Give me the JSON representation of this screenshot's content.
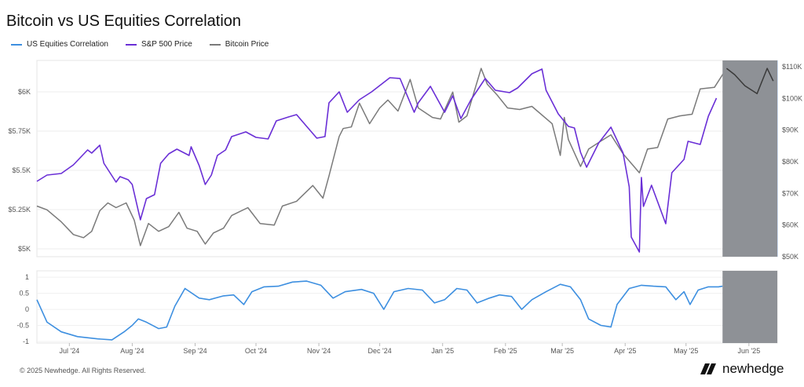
{
  "title": "Bitcoin vs US Equities Correlation",
  "footer": "© 2025 Newhedge. All Rights Reserved.",
  "brand": {
    "name": "newhedge",
    "logo_icon": "newhedge-logo-icon"
  },
  "colors": {
    "correlation": "#3d8fe0",
    "sp500": "#6a2fd6",
    "bitcoin": "#7a7a7a",
    "forecast_band": "#8e9196"
  },
  "chart_data": [
    {
      "type": "line",
      "title": "Bitcoin vs US Equities Correlation",
      "legend": "top-left",
      "x_ticks": [
        "Jul '24",
        "Aug '24",
        "Sep '24",
        "Oct '24",
        "Nov '24",
        "Dec '24",
        "Jan '25",
        "Feb '25",
        "Mar '25",
        "Apr '25",
        "May '25",
        "Jun '25"
      ],
      "y_left": {
        "ticks": [
          "$5K",
          "$5.25K",
          "$5.5K",
          "$5.75K",
          "$6K"
        ],
        "range": [
          4950,
          6200
        ]
      },
      "y_right": {
        "ticks": [
          "$50K",
          "$60K",
          "$70K",
          "$80K",
          "$90K",
          "$100K",
          "$110K"
        ],
        "range": [
          50000,
          112000
        ]
      },
      "shaded_region": [
        "2025-05-19",
        "2025-06-15"
      ],
      "series": [
        {
          "name": "S&P 500 Price",
          "axis": "left",
          "points": [
            [
              "2024-06-15",
              5430
            ],
            [
              "2024-06-20",
              5470
            ],
            [
              "2024-06-27",
              5480
            ],
            [
              "2024-07-03",
              5535
            ],
            [
              "2024-07-10",
              5630
            ],
            [
              "2024-07-12",
              5610
            ],
            [
              "2024-07-16",
              5660
            ],
            [
              "2024-07-18",
              5545
            ],
            [
              "2024-07-24",
              5425
            ],
            [
              "2024-07-26",
              5460
            ],
            [
              "2024-07-30",
              5440
            ],
            [
              "2024-08-01",
              5410
            ],
            [
              "2024-08-05",
              5185
            ],
            [
              "2024-08-08",
              5320
            ],
            [
              "2024-08-12",
              5345
            ],
            [
              "2024-08-15",
              5545
            ],
            [
              "2024-08-19",
              5605
            ],
            [
              "2024-08-23",
              5635
            ],
            [
              "2024-08-29",
              5595
            ],
            [
              "2024-08-30",
              5650
            ],
            [
              "2024-09-03",
              5530
            ],
            [
              "2024-09-06",
              5410
            ],
            [
              "2024-09-09",
              5470
            ],
            [
              "2024-09-12",
              5595
            ],
            [
              "2024-09-16",
              5630
            ],
            [
              "2024-09-19",
              5715
            ],
            [
              "2024-09-26",
              5745
            ],
            [
              "2024-10-01",
              5710
            ],
            [
              "2024-10-07",
              5700
            ],
            [
              "2024-10-11",
              5815
            ],
            [
              "2024-10-17",
              5840
            ],
            [
              "2024-10-21",
              5855
            ],
            [
              "2024-10-24",
              5810
            ],
            [
              "2024-10-31",
              5705
            ],
            [
              "2024-11-04",
              5715
            ],
            [
              "2024-11-06",
              5930
            ],
            [
              "2024-11-11",
              6000
            ],
            [
              "2024-11-15",
              5870
            ],
            [
              "2024-11-21",
              5950
            ],
            [
              "2024-11-27",
              6000
            ],
            [
              "2024-12-06",
              6090
            ],
            [
              "2024-12-11",
              6085
            ],
            [
              "2024-12-18",
              5870
            ],
            [
              "2024-12-20",
              5930
            ],
            [
              "2024-12-26",
              6035
            ],
            [
              "2025-01-02",
              5870
            ],
            [
              "2025-01-06",
              5975
            ],
            [
              "2025-01-10",
              5830
            ],
            [
              "2025-01-15",
              5950
            ],
            [
              "2025-01-22",
              6085
            ],
            [
              "2025-01-27",
              6010
            ],
            [
              "2025-02-03",
              5995
            ],
            [
              "2025-02-07",
              6025
            ],
            [
              "2025-02-14",
              6115
            ],
            [
              "2025-02-19",
              6145
            ],
            [
              "2025-02-21",
              6010
            ],
            [
              "2025-02-27",
              5860
            ],
            [
              "2025-03-04",
              5780
            ],
            [
              "2025-03-07",
              5770
            ],
            [
              "2025-03-10",
              5615
            ],
            [
              "2025-03-13",
              5520
            ],
            [
              "2025-03-19",
              5675
            ],
            [
              "2025-03-25",
              5775
            ],
            [
              "2025-03-31",
              5610
            ],
            [
              "2025-04-03",
              5395
            ],
            [
              "2025-04-04",
              5075
            ],
            [
              "2025-04-08",
              4980
            ],
            [
              "2025-04-09",
              5455
            ],
            [
              "2025-04-10",
              5270
            ],
            [
              "2025-04-14",
              5405
            ],
            [
              "2025-04-21",
              5160
            ],
            [
              "2025-04-24",
              5485
            ],
            [
              "2025-04-30",
              5570
            ],
            [
              "2025-05-02",
              5685
            ],
            [
              "2025-05-08",
              5665
            ],
            [
              "2025-05-12",
              5845
            ],
            [
              "2025-05-16",
              5960
            ]
          ]
        },
        {
          "name": "Bitcoin Price",
          "axis": "right",
          "points": [
            [
              "2024-06-15",
              66000
            ],
            [
              "2024-06-20",
              64800
            ],
            [
              "2024-06-27",
              61000
            ],
            [
              "2024-07-03",
              57000
            ],
            [
              "2024-07-08",
              56000
            ],
            [
              "2024-07-12",
              58000
            ],
            [
              "2024-07-16",
              64500
            ],
            [
              "2024-07-20",
              67000
            ],
            [
              "2024-07-24",
              65500
            ],
            [
              "2024-07-29",
              67000
            ],
            [
              "2024-08-02",
              61500
            ],
            [
              "2024-08-05",
              53500
            ],
            [
              "2024-08-09",
              60500
            ],
            [
              "2024-08-14",
              58000
            ],
            [
              "2024-08-19",
              59500
            ],
            [
              "2024-08-24",
              64000
            ],
            [
              "2024-08-28",
              59000
            ],
            [
              "2024-09-02",
              58000
            ],
            [
              "2024-09-06",
              54000
            ],
            [
              "2024-09-10",
              57500
            ],
            [
              "2024-09-15",
              59000
            ],
            [
              "2024-09-19",
              63000
            ],
            [
              "2024-09-27",
              65500
            ],
            [
              "2024-10-03",
              60500
            ],
            [
              "2024-10-10",
              60000
            ],
            [
              "2024-10-14",
              66000
            ],
            [
              "2024-10-21",
              67500
            ],
            [
              "2024-10-29",
              72500
            ],
            [
              "2024-11-03",
              68500
            ],
            [
              "2024-11-06",
              75500
            ],
            [
              "2024-11-11",
              88000
            ],
            [
              "2024-11-13",
              90500
            ],
            [
              "2024-11-17",
              91000
            ],
            [
              "2024-11-21",
              98500
            ],
            [
              "2024-11-26",
              92000
            ],
            [
              "2024-12-01",
              97000
            ],
            [
              "2024-12-05",
              99500
            ],
            [
              "2024-12-10",
              96000
            ],
            [
              "2024-12-16",
              106000
            ],
            [
              "2024-12-20",
              97000
            ],
            [
              "2024-12-27",
              94000
            ],
            [
              "2024-12-31",
              93500
            ],
            [
              "2025-01-06",
              102000
            ],
            [
              "2025-01-09",
              92500
            ],
            [
              "2025-01-13",
              94500
            ],
            [
              "2025-01-20",
              109500
            ],
            [
              "2025-01-23",
              104500
            ],
            [
              "2025-01-28",
              101000
            ],
            [
              "2025-02-02",
              97000
            ],
            [
              "2025-02-08",
              96500
            ],
            [
              "2025-02-14",
              97500
            ],
            [
              "2025-02-24",
              92000
            ],
            [
              "2025-02-28",
              82000
            ],
            [
              "2025-03-02",
              94000
            ],
            [
              "2025-03-04",
              87000
            ],
            [
              "2025-03-10",
              78500
            ],
            [
              "2025-03-14",
              84000
            ],
            [
              "2025-03-20",
              86500
            ],
            [
              "2025-03-25",
              88500
            ],
            [
              "2025-03-31",
              82500
            ],
            [
              "2025-04-06",
              78000
            ],
            [
              "2025-04-08",
              76500
            ],
            [
              "2025-04-12",
              84000
            ],
            [
              "2025-04-17",
              84500
            ],
            [
              "2025-04-22",
              93500
            ],
            [
              "2025-04-28",
              94500
            ],
            [
              "2025-05-04",
              95000
            ],
            [
              "2025-05-08",
              103000
            ],
            [
              "2025-05-15",
              103500
            ],
            [
              "2025-05-21",
              109500
            ],
            [
              "2025-05-25",
              107500
            ],
            [
              "2025-05-30",
              104000
            ],
            [
              "2025-06-05",
              101500
            ],
            [
              "2025-06-10",
              109500
            ],
            [
              "2025-06-13",
              105500
            ]
          ]
        }
      ]
    },
    {
      "type": "line",
      "y_ticks": [
        "1",
        "0.5",
        "0",
        "-0.5",
        "-1"
      ],
      "ylim": [
        -1.05,
        1.2
      ],
      "shaded_region": [
        "2025-05-19",
        "2025-06-15"
      ],
      "series": [
        {
          "name": "US Equities Correlation",
          "points": [
            [
              "2024-06-15",
              0.3
            ],
            [
              "2024-06-20",
              -0.4
            ],
            [
              "2024-06-27",
              -0.7
            ],
            [
              "2024-07-05",
              -0.85
            ],
            [
              "2024-07-15",
              -0.92
            ],
            [
              "2024-07-22",
              -0.95
            ],
            [
              "2024-07-28",
              -0.7
            ],
            [
              "2024-08-01",
              -0.5
            ],
            [
              "2024-08-04",
              -0.3
            ],
            [
              "2024-08-08",
              -0.4
            ],
            [
              "2024-08-14",
              -0.6
            ],
            [
              "2024-08-18",
              -0.55
            ],
            [
              "2024-08-22",
              0.1
            ],
            [
              "2024-08-27",
              0.65
            ],
            [
              "2024-09-03",
              0.35
            ],
            [
              "2024-09-08",
              0.3
            ],
            [
              "2024-09-15",
              0.42
            ],
            [
              "2024-09-20",
              0.45
            ],
            [
              "2024-09-25",
              0.15
            ],
            [
              "2024-09-29",
              0.55
            ],
            [
              "2024-10-05",
              0.7
            ],
            [
              "2024-10-12",
              0.72
            ],
            [
              "2024-10-19",
              0.85
            ],
            [
              "2024-10-26",
              0.88
            ],
            [
              "2024-11-02",
              0.75
            ],
            [
              "2024-11-08",
              0.35
            ],
            [
              "2024-11-14",
              0.55
            ],
            [
              "2024-11-22",
              0.62
            ],
            [
              "2024-11-28",
              0.5
            ],
            [
              "2024-12-03",
              0.0
            ],
            [
              "2024-12-08",
              0.55
            ],
            [
              "2024-12-15",
              0.65
            ],
            [
              "2024-12-22",
              0.6
            ],
            [
              "2024-12-28",
              0.2
            ],
            [
              "2025-01-02",
              0.3
            ],
            [
              "2025-01-08",
              0.65
            ],
            [
              "2025-01-13",
              0.6
            ],
            [
              "2025-01-18",
              0.2
            ],
            [
              "2025-01-24",
              0.35
            ],
            [
              "2025-01-29",
              0.45
            ],
            [
              "2025-02-04",
              0.4
            ],
            [
              "2025-02-09",
              0.0
            ],
            [
              "2025-02-14",
              0.3
            ],
            [
              "2025-02-21",
              0.55
            ],
            [
              "2025-02-28",
              0.78
            ],
            [
              "2025-03-05",
              0.7
            ],
            [
              "2025-03-10",
              0.3
            ],
            [
              "2025-03-14",
              -0.3
            ],
            [
              "2025-03-20",
              -0.5
            ],
            [
              "2025-03-25",
              -0.55
            ],
            [
              "2025-03-28",
              0.15
            ],
            [
              "2025-04-03",
              0.65
            ],
            [
              "2025-04-09",
              0.75
            ],
            [
              "2025-04-15",
              0.72
            ],
            [
              "2025-04-21",
              0.7
            ],
            [
              "2025-04-26",
              0.3
            ],
            [
              "2025-04-30",
              0.55
            ],
            [
              "2025-05-03",
              0.15
            ],
            [
              "2025-05-07",
              0.6
            ],
            [
              "2025-05-12",
              0.7
            ],
            [
              "2025-05-17",
              0.7
            ],
            [
              "2025-05-19",
              0.72
            ]
          ]
        }
      ]
    }
  ]
}
